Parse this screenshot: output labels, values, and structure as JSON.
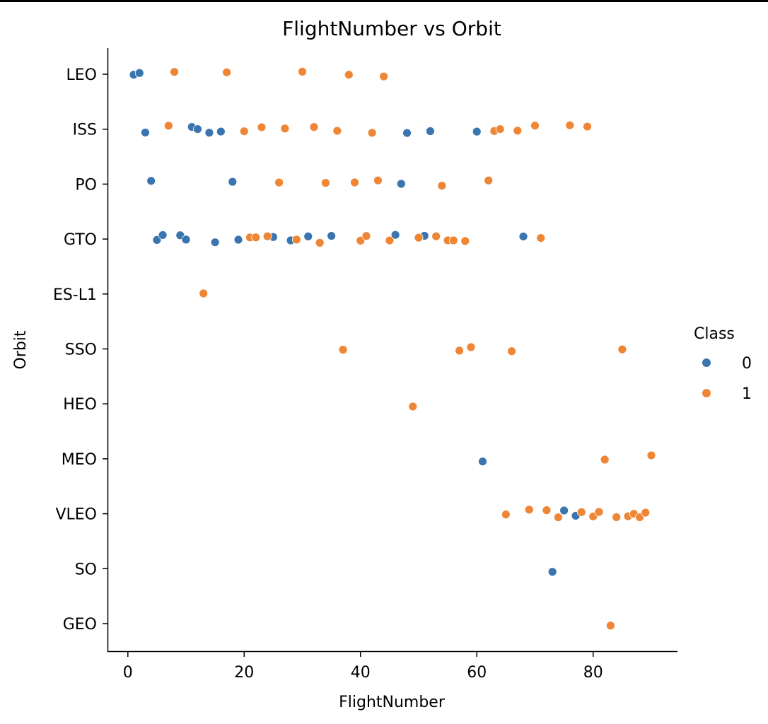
{
  "chart_data": {
    "type": "scatter",
    "title": "FlightNumber vs Orbit",
    "xlabel": "FlightNumber",
    "ylabel": "Orbit",
    "xlim": [
      -3.5,
      94.5
    ],
    "xticks": [
      0,
      20,
      40,
      60,
      80
    ],
    "categories": [
      "LEO",
      "ISS",
      "PO",
      "GTO",
      "ES-L1",
      "SSO",
      "HEO",
      "MEO",
      "VLEO",
      "SO",
      "GEO"
    ],
    "legend": {
      "title": "Class",
      "placement": "right",
      "entries": [
        {
          "label": "0",
          "color": "#3a75af"
        },
        {
          "label": "1",
          "color": "#ef8636"
        }
      ]
    },
    "series": [
      {
        "name": "0",
        "color": "#3a75af",
        "points": [
          {
            "x": 1,
            "y": "LEO"
          },
          {
            "x": 2,
            "y": "LEO"
          },
          {
            "x": 3,
            "y": "ISS"
          },
          {
            "x": 11,
            "y": "ISS"
          },
          {
            "x": 12,
            "y": "ISS"
          },
          {
            "x": 14,
            "y": "ISS"
          },
          {
            "x": 16,
            "y": "ISS"
          },
          {
            "x": 48,
            "y": "ISS"
          },
          {
            "x": 52,
            "y": "ISS"
          },
          {
            "x": 60,
            "y": "ISS"
          },
          {
            "x": 4,
            "y": "PO"
          },
          {
            "x": 18,
            "y": "PO"
          },
          {
            "x": 47,
            "y": "PO"
          },
          {
            "x": 5,
            "y": "GTO"
          },
          {
            "x": 6,
            "y": "GTO"
          },
          {
            "x": 9,
            "y": "GTO"
          },
          {
            "x": 10,
            "y": "GTO"
          },
          {
            "x": 15,
            "y": "GTO"
          },
          {
            "x": 19,
            "y": "GTO"
          },
          {
            "x": 25,
            "y": "GTO"
          },
          {
            "x": 28,
            "y": "GTO"
          },
          {
            "x": 31,
            "y": "GTO"
          },
          {
            "x": 35,
            "y": "GTO"
          },
          {
            "x": 46,
            "y": "GTO"
          },
          {
            "x": 51,
            "y": "GTO"
          },
          {
            "x": 68,
            "y": "GTO"
          },
          {
            "x": 61,
            "y": "MEO"
          },
          {
            "x": 75,
            "y": "VLEO"
          },
          {
            "x": 77,
            "y": "VLEO"
          },
          {
            "x": 73,
            "y": "SO"
          }
        ]
      },
      {
        "name": "1",
        "color": "#ef8636",
        "points": [
          {
            "x": 8,
            "y": "LEO"
          },
          {
            "x": 17,
            "y": "LEO"
          },
          {
            "x": 30,
            "y": "LEO"
          },
          {
            "x": 38,
            "y": "LEO"
          },
          {
            "x": 44,
            "y": "LEO"
          },
          {
            "x": 7,
            "y": "ISS"
          },
          {
            "x": 20,
            "y": "ISS"
          },
          {
            "x": 23,
            "y": "ISS"
          },
          {
            "x": 27,
            "y": "ISS"
          },
          {
            "x": 32,
            "y": "ISS"
          },
          {
            "x": 36,
            "y": "ISS"
          },
          {
            "x": 42,
            "y": "ISS"
          },
          {
            "x": 63,
            "y": "ISS"
          },
          {
            "x": 64,
            "y": "ISS"
          },
          {
            "x": 67,
            "y": "ISS"
          },
          {
            "x": 70,
            "y": "ISS"
          },
          {
            "x": 76,
            "y": "ISS"
          },
          {
            "x": 79,
            "y": "ISS"
          },
          {
            "x": 26,
            "y": "PO"
          },
          {
            "x": 34,
            "y": "PO"
          },
          {
            "x": 39,
            "y": "PO"
          },
          {
            "x": 43,
            "y": "PO"
          },
          {
            "x": 54,
            "y": "PO"
          },
          {
            "x": 62,
            "y": "PO"
          },
          {
            "x": 21,
            "y": "GTO"
          },
          {
            "x": 22,
            "y": "GTO"
          },
          {
            "x": 24,
            "y": "GTO"
          },
          {
            "x": 29,
            "y": "GTO"
          },
          {
            "x": 33,
            "y": "GTO"
          },
          {
            "x": 40,
            "y": "GTO"
          },
          {
            "x": 41,
            "y": "GTO"
          },
          {
            "x": 45,
            "y": "GTO"
          },
          {
            "x": 50,
            "y": "GTO"
          },
          {
            "x": 53,
            "y": "GTO"
          },
          {
            "x": 55,
            "y": "GTO"
          },
          {
            "x": 56,
            "y": "GTO"
          },
          {
            "x": 58,
            "y": "GTO"
          },
          {
            "x": 71,
            "y": "GTO"
          },
          {
            "x": 13,
            "y": "ES-L1"
          },
          {
            "x": 37,
            "y": "SSO"
          },
          {
            "x": 57,
            "y": "SSO"
          },
          {
            "x": 59,
            "y": "SSO"
          },
          {
            "x": 66,
            "y": "SSO"
          },
          {
            "x": 85,
            "y": "SSO"
          },
          {
            "x": 49,
            "y": "HEO"
          },
          {
            "x": 82,
            "y": "MEO"
          },
          {
            "x": 90,
            "y": "MEO"
          },
          {
            "x": 65,
            "y": "VLEO"
          },
          {
            "x": 69,
            "y": "VLEO"
          },
          {
            "x": 72,
            "y": "VLEO"
          },
          {
            "x": 74,
            "y": "VLEO"
          },
          {
            "x": 78,
            "y": "VLEO"
          },
          {
            "x": 80,
            "y": "VLEO"
          },
          {
            "x": 81,
            "y": "VLEO"
          },
          {
            "x": 84,
            "y": "VLEO"
          },
          {
            "x": 86,
            "y": "VLEO"
          },
          {
            "x": 87,
            "y": "VLEO"
          },
          {
            "x": 88,
            "y": "VLEO"
          },
          {
            "x": 89,
            "y": "VLEO"
          },
          {
            "x": 83,
            "y": "GEO"
          }
        ]
      }
    ]
  }
}
